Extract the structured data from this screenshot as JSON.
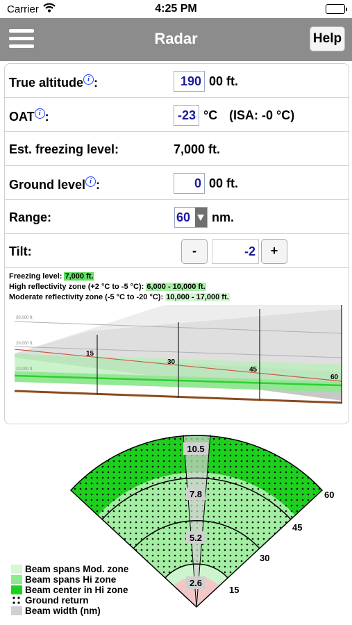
{
  "status": {
    "carrier": "Carrier",
    "time": "4:25 PM"
  },
  "nav": {
    "title": "Radar",
    "help_label": "Help"
  },
  "form": {
    "true_altitude": {
      "label": "True altitude",
      "info": "i",
      "value": "190",
      "unit": "00 ft."
    },
    "oat": {
      "label": "OAT",
      "info": "i",
      "value": "-23",
      "unit": "°C",
      "isa": "(ISA: -0 °C)"
    },
    "freezing": {
      "label": "Est. freezing level:",
      "value": "7,000 ft."
    },
    "ground_level": {
      "label": "Ground level",
      "info": "i",
      "value": "0",
      "unit": "00 ft."
    },
    "range": {
      "label": "Range:",
      "value": "60",
      "unit": "nm."
    },
    "tilt": {
      "label": "Tilt:",
      "minus": "-",
      "plus": "+",
      "value": "-2"
    },
    "colon": ":"
  },
  "legend_text": {
    "freezing_label": "Freezing level:",
    "freezing_value": "7,000 ft.",
    "hi_label": "High reflectivity zone (+2 °C to -5 °C):",
    "hi_value": "6,000 - 10,000 ft.",
    "mod_label": "Moderate reflectivity zone (-5 °C to -20 °C):",
    "mod_value": "10,000 - 17,000 ft."
  },
  "profile": {
    "alt_labels": [
      "30,000 ft.",
      "20,000 ft.",
      "10,000 ft."
    ],
    "range_labels": [
      "15",
      "30",
      "45",
      "60"
    ]
  },
  "plan": {
    "ring_labels": [
      "15",
      "30",
      "45",
      "60"
    ],
    "beam_widths": [
      "2.6",
      "5.2",
      "7.8",
      "10.5"
    ],
    "legend": [
      {
        "label": "Beam spans Mod. zone",
        "color": "#d4f7d4"
      },
      {
        "label": "Beam spans Hi zone",
        "color": "#8eea8e"
      },
      {
        "label": "Beam center in Hi zone",
        "color": "#1ed01e"
      },
      {
        "label": "Ground return",
        "color": "#000000"
      },
      {
        "label": "Beam width (nm)",
        "color": "#d0d0d0"
      }
    ]
  }
}
